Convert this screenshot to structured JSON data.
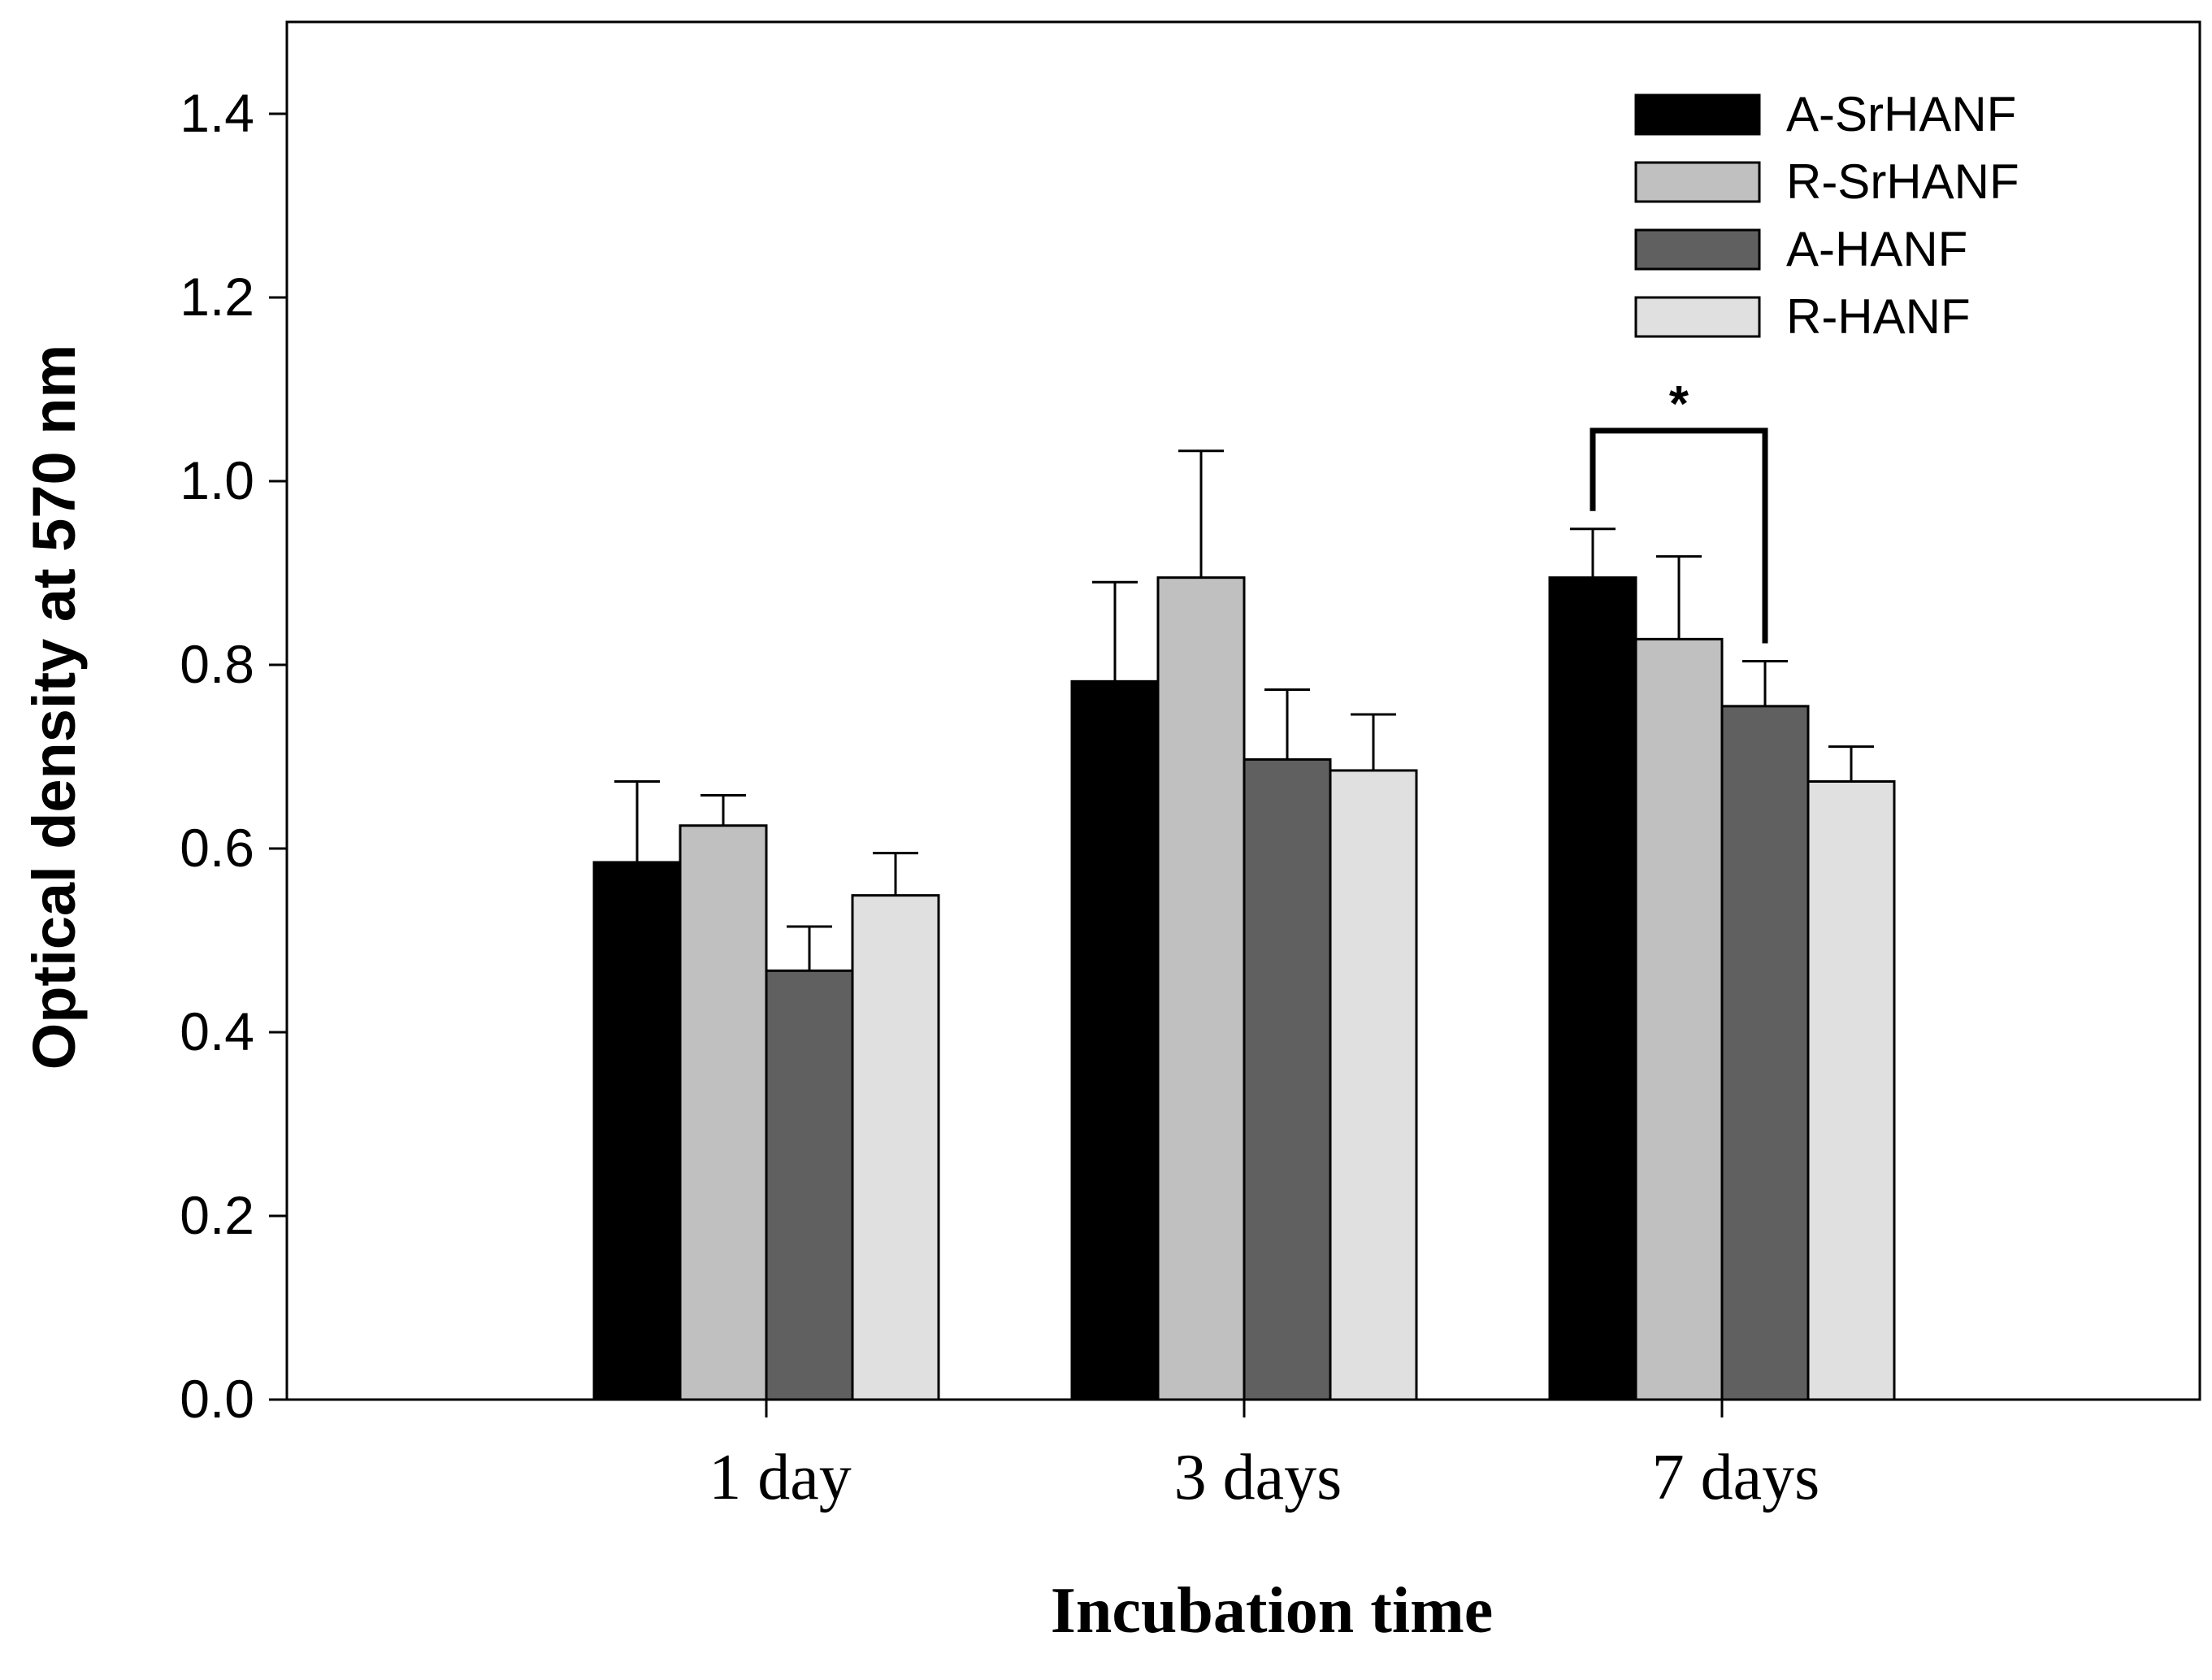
{
  "chart_data": {
    "type": "bar",
    "title": "",
    "xlabel": "Incubation time",
    "ylabel": "Optical density at 570 nm",
    "categories": [
      "1 day",
      "3 days",
      "7 days"
    ],
    "ylim": [
      0,
      1.5
    ],
    "yticks": [
      "0.0",
      "0.2",
      "0.4",
      "0.6",
      "0.8",
      "1.0",
      "1.2",
      "1.4"
    ],
    "ytick_values": [
      0,
      0.2,
      0.4,
      0.6,
      0.8,
      1.0,
      1.2,
      1.4
    ],
    "grid": false,
    "legend_position": "top-right",
    "series": [
      {
        "name": "A-SrHANF",
        "color": "#000000",
        "values": [
          0.585,
          0.782,
          0.895
        ],
        "errors": [
          0.088,
          0.108,
          0.053
        ]
      },
      {
        "name": "R-SrHANF",
        "color": "#c0c0c0",
        "values": [
          0.625,
          0.895,
          0.828
        ],
        "errors": [
          0.033,
          0.138,
          0.09
        ]
      },
      {
        "name": "A-HANF",
        "color": "#606060",
        "values": [
          0.467,
          0.697,
          0.755
        ],
        "errors": [
          0.048,
          0.076,
          0.049
        ]
      },
      {
        "name": "R-HANF",
        "color": "#e0e0e0",
        "values": [
          0.549,
          0.685,
          0.673
        ],
        "errors": [
          0.046,
          0.061,
          0.038
        ]
      }
    ],
    "annotations": [
      {
        "text": "*",
        "type": "significance-bracket",
        "category": "7 days",
        "between": [
          "A-SrHANF",
          "A-HANF"
        ],
        "y": 1.055
      }
    ]
  }
}
